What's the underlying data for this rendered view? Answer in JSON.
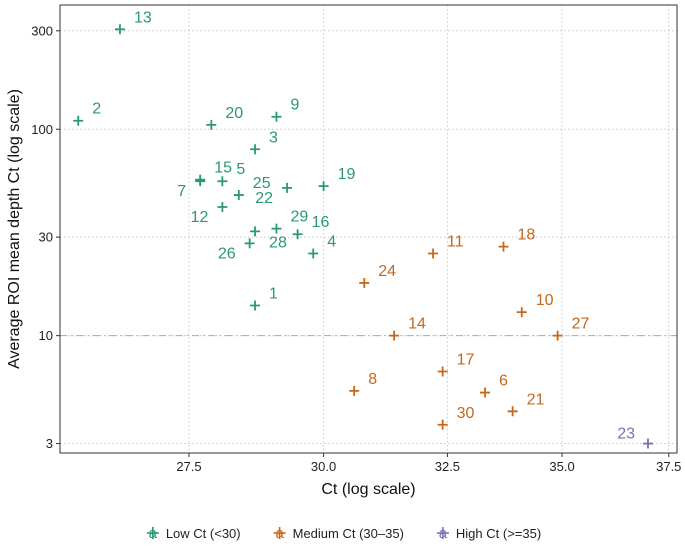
{
  "chart_data": {
    "type": "scatter",
    "xlabel": "Ct (log scale)",
    "ylabel": "Average ROI mean depth Ct (log scale)",
    "x_scale": "log",
    "y_scale": "log",
    "xlim": [
      25.3,
      37.7
    ],
    "ylim": [
      2.7,
      400
    ],
    "x_ticks": [
      27.5,
      30.0,
      32.5,
      35.0,
      37.5
    ],
    "x_tick_labels": [
      "27.5",
      "30.0",
      "32.5",
      "35.0",
      "37.5"
    ],
    "y_ticks": [
      3,
      10,
      30,
      100,
      300
    ],
    "y_tick_labels": [
      "3",
      "10",
      "30",
      "100",
      "300"
    ],
    "reference_line_y": 10,
    "grid": true,
    "legend_position": "bottom",
    "groups": [
      {
        "key": "low",
        "name": "Low Ct (<30)",
        "color": "#2a9874"
      },
      {
        "key": "medium",
        "name": "Medium Ct (30–35)",
        "color": "#c5681c"
      },
      {
        "key": "high",
        "name": "High Ct (>=35)",
        "color": "#7a70b4"
      }
    ],
    "legend_glyph": "a",
    "points": [
      {
        "id": "1",
        "x": 28.7,
        "y": 14,
        "group": "low"
      },
      {
        "id": "2",
        "x": 25.6,
        "y": 110,
        "group": "low"
      },
      {
        "id": "3",
        "x": 28.7,
        "y": 80,
        "group": "low"
      },
      {
        "id": "4",
        "x": 29.8,
        "y": 25,
        "group": "low"
      },
      {
        "id": "5",
        "x": 28.1,
        "y": 56,
        "group": "low"
      },
      {
        "id": "6",
        "x": 33.3,
        "y": 5.3,
        "group": "medium"
      },
      {
        "id": "7",
        "x": 27.7,
        "y": 56,
        "group": "low"
      },
      {
        "id": "8",
        "x": 30.6,
        "y": 5.4,
        "group": "medium"
      },
      {
        "id": "9",
        "x": 29.1,
        "y": 115,
        "group": "low"
      },
      {
        "id": "10",
        "x": 34.1,
        "y": 13,
        "group": "medium"
      },
      {
        "id": "11",
        "x": 32.2,
        "y": 25,
        "group": "medium"
      },
      {
        "id": "12",
        "x": 28.1,
        "y": 42,
        "group": "low"
      },
      {
        "id": "13",
        "x": 26.3,
        "y": 305,
        "group": "low"
      },
      {
        "id": "14",
        "x": 31.4,
        "y": 10,
        "group": "medium"
      },
      {
        "id": "15",
        "x": 27.7,
        "y": 57,
        "group": "low"
      },
      {
        "id": "16",
        "x": 29.5,
        "y": 31,
        "group": "low"
      },
      {
        "id": "17",
        "x": 32.4,
        "y": 6.7,
        "group": "medium"
      },
      {
        "id": "18",
        "x": 33.7,
        "y": 27,
        "group": "medium"
      },
      {
        "id": "19",
        "x": 30.0,
        "y": 53,
        "group": "low"
      },
      {
        "id": "20",
        "x": 27.9,
        "y": 105,
        "group": "low"
      },
      {
        "id": "21",
        "x": 33.9,
        "y": 4.3,
        "group": "medium"
      },
      {
        "id": "22",
        "x": 29.3,
        "y": 52,
        "group": "low"
      },
      {
        "id": "23",
        "x": 37.0,
        "y": 3.0,
        "group": "high"
      },
      {
        "id": "24",
        "x": 30.8,
        "y": 18,
        "group": "medium"
      },
      {
        "id": "25",
        "x": 28.4,
        "y": 48,
        "group": "low"
      },
      {
        "id": "26",
        "x": 28.6,
        "y": 28,
        "group": "low"
      },
      {
        "id": "27",
        "x": 34.9,
        "y": 10,
        "group": "medium"
      },
      {
        "id": "28",
        "x": 28.7,
        "y": 32,
        "group": "low"
      },
      {
        "id": "29",
        "x": 29.1,
        "y": 33,
        "group": "low"
      },
      {
        "id": "30",
        "x": 32.4,
        "y": 3.7,
        "group": "medium"
      }
    ]
  }
}
